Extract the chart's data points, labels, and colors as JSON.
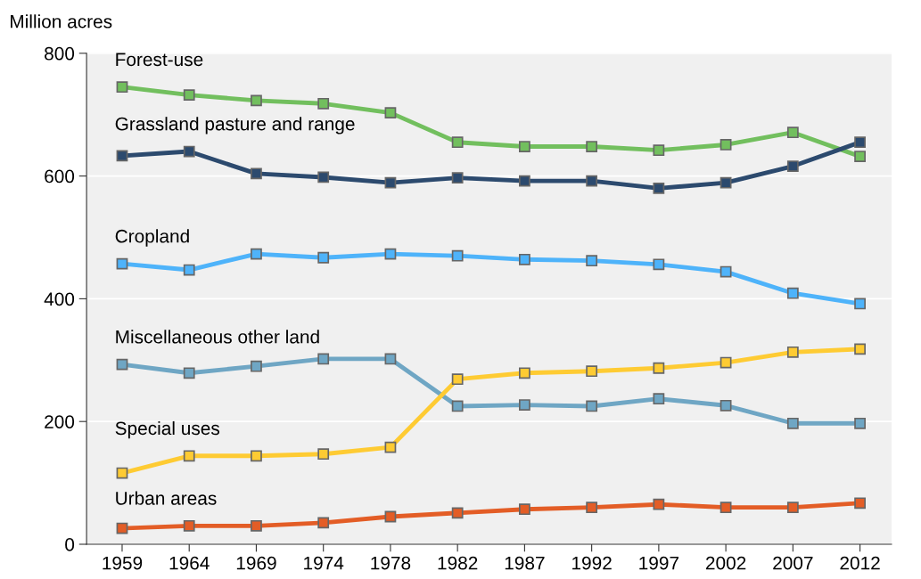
{
  "chart_data": {
    "type": "line",
    "ylabel": "Million acres",
    "categories": [
      "1959",
      "1964",
      "1969",
      "1974",
      "1978",
      "1982",
      "1987",
      "1992",
      "1997",
      "2002",
      "2007",
      "2012"
    ],
    "ylim": [
      0,
      800
    ],
    "yticks": [
      0,
      200,
      400,
      600,
      800
    ],
    "grid": "y",
    "legend": false,
    "marker": "square",
    "line_style": "solid",
    "series": [
      {
        "name": "Forest-use",
        "color": "#72bf5e",
        "values": [
          745,
          732,
          723,
          718,
          703,
          655,
          648,
          648,
          642,
          651,
          671,
          632
        ]
      },
      {
        "name": "Grassland pasture and range",
        "color": "#2c4a6e",
        "values": [
          633,
          640,
          604,
          598,
          589,
          597,
          592,
          592,
          580,
          589,
          616,
          655
        ]
      },
      {
        "name": "Cropland",
        "color": "#4eb3fa",
        "values": [
          457,
          447,
          473,
          467,
          473,
          470,
          464,
          462,
          456,
          444,
          409,
          392
        ]
      },
      {
        "name": "Miscellaneous other land",
        "color": "#6fa6c4",
        "values": [
          293,
          279,
          290,
          302,
          302,
          225,
          227,
          225,
          237,
          226,
          197,
          197
        ]
      },
      {
        "name": "Special uses",
        "color": "#fecb33",
        "values": [
          116,
          144,
          144,
          147,
          158,
          269,
          279,
          282,
          287,
          296,
          313,
          318
        ]
      },
      {
        "name": "Urban areas",
        "color": "#e35d26",
        "values": [
          26,
          30,
          30,
          35,
          45,
          51,
          57,
          60,
          65,
          60,
          60,
          67
        ]
      }
    ]
  }
}
